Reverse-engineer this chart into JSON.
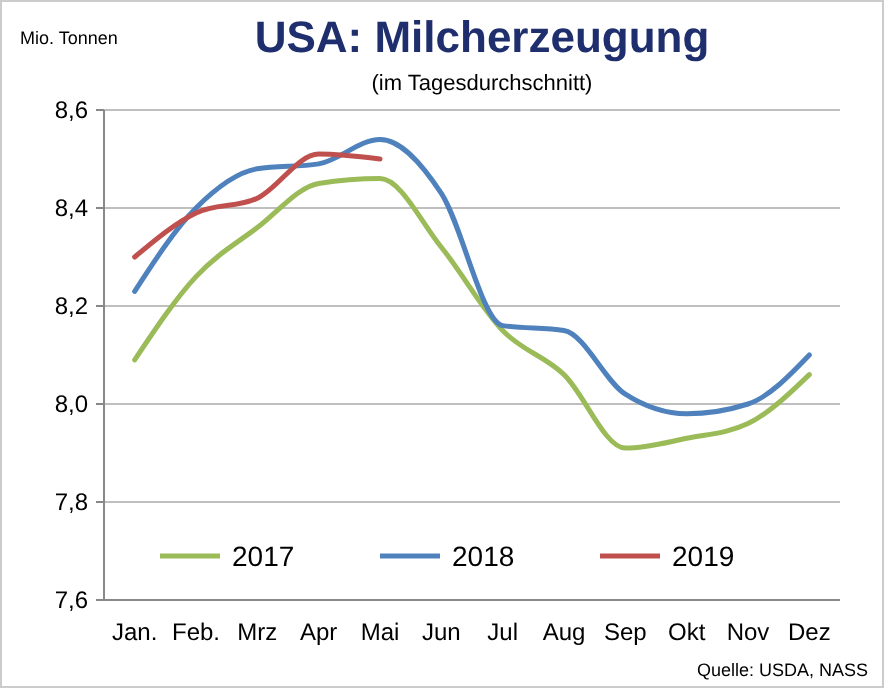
{
  "chart_data": {
    "type": "line",
    "title": "USA: Milcherzeugung",
    "subtitle": "(im Tagesdurchschnitt)",
    "ylabel": "Mio. Tonnen",
    "categories": [
      "Jan.",
      "Feb.",
      "Mrz",
      "Apr",
      "Mai",
      "Jun",
      "Jul",
      "Aug",
      "Sep",
      "Okt",
      "Nov",
      "Dez"
    ],
    "series": [
      {
        "name": "2017",
        "color": "#9bbb59",
        "values": [
          8.09,
          8.26,
          8.36,
          8.45,
          8.46,
          8.32,
          8.15,
          8.06,
          7.91,
          7.93,
          7.96,
          8.06
        ]
      },
      {
        "name": "2018",
        "color": "#4f81bd",
        "values": [
          8.23,
          8.4,
          8.48,
          8.49,
          8.54,
          8.43,
          8.16,
          8.15,
          8.02,
          7.98,
          8.0,
          8.1
        ]
      },
      {
        "name": "2019",
        "color": "#c0504d",
        "values": [
          8.3,
          8.39,
          8.42,
          8.51,
          8.5,
          null,
          null,
          null,
          null,
          null,
          null,
          null
        ]
      }
    ],
    "ylim": [
      7.6,
      8.6
    ],
    "yticks": [
      {
        "value": 7.6,
        "label": "7,6"
      },
      {
        "value": 7.8,
        "label": "7,8"
      },
      {
        "value": 8.0,
        "label": "8,0"
      },
      {
        "value": 8.2,
        "label": "8,2"
      },
      {
        "value": 8.4,
        "label": "8,4"
      },
      {
        "value": 8.6,
        "label": "8,6"
      }
    ],
    "grid": "y",
    "legend": "bottom",
    "marker": "none",
    "line_style": "solid",
    "annotations": [
      "Quelle: USDA, NASS"
    ]
  }
}
